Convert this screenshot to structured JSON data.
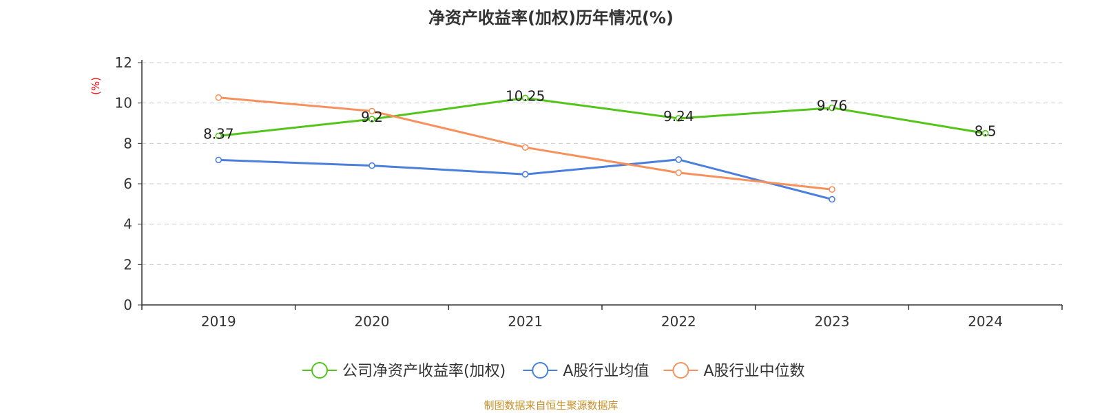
{
  "chart_data": {
    "type": "line",
    "title": "净资产收益率(加权)历年情况(%)",
    "ylabel": "(%)",
    "xlabel": "",
    "ylim": [
      0,
      12
    ],
    "yticks": [
      0,
      2,
      4,
      6,
      8,
      10,
      12
    ],
    "grid": true,
    "legend_position": "bottom",
    "categories": [
      "2019",
      "2020",
      "2021",
      "2022",
      "2023",
      "2024"
    ],
    "series": [
      {
        "name": "公司净资产收益率(加权)",
        "color": "#52c41a",
        "values": [
          8.37,
          9.2,
          10.25,
          9.24,
          9.76,
          8.5
        ],
        "labels": [
          "8.37",
          "9.2",
          "10.25",
          "9.24",
          "9.76",
          "8.5"
        ],
        "show_labels": true
      },
      {
        "name": "A股行业均值",
        "color": "#4a7fdc",
        "values": [
          7.18,
          6.9,
          6.47,
          7.2,
          5.23,
          null
        ],
        "show_labels": false
      },
      {
        "name": "A股行业中位数",
        "color": "#f7915c",
        "values": [
          10.27,
          9.6,
          7.8,
          6.55,
          5.72,
          null
        ],
        "show_labels": false
      }
    ]
  },
  "source_note": "制图数据来自恒生聚源数据库"
}
